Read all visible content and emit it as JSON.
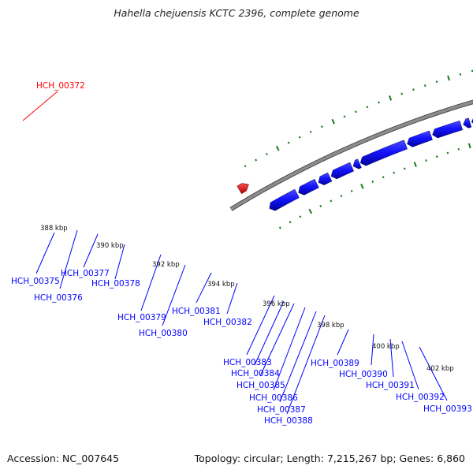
{
  "title": "Hahella chejuensis KCTC 2396, complete genome",
  "footer": {
    "accession": "Accession: NC_007645",
    "summary": "Topology: circular; Length: 7,215,267 bp; Genes: 6,860"
  },
  "colors": {
    "forward_gene": "#ff0000",
    "reverse_gene": "#0000ff",
    "backbone": "#888888",
    "tick": "#1a7a1a"
  },
  "scale_labels": [
    "388 kbp",
    "390 kbp",
    "392 kbp",
    "394 kbp",
    "396 kbp",
    "398 kbp",
    "400 kbp",
    "402 kbp"
  ],
  "forward_genes": [
    "HCH_00372"
  ],
  "reverse_genes": [
    "HCH_00375",
    "HCH_00376",
    "HCH_00377",
    "HCH_00378",
    "HCH_00379",
    "HCH_00380",
    "HCH_00381",
    "HCH_00382",
    "HCH_00383",
    "HCH_00384",
    "HCH_00385",
    "HCH_00386",
    "HCH_00387",
    "HCH_00388",
    "HCH_00389",
    "HCH_00390",
    "HCH_00391",
    "HCH_00392",
    "HCH_00393"
  ]
}
